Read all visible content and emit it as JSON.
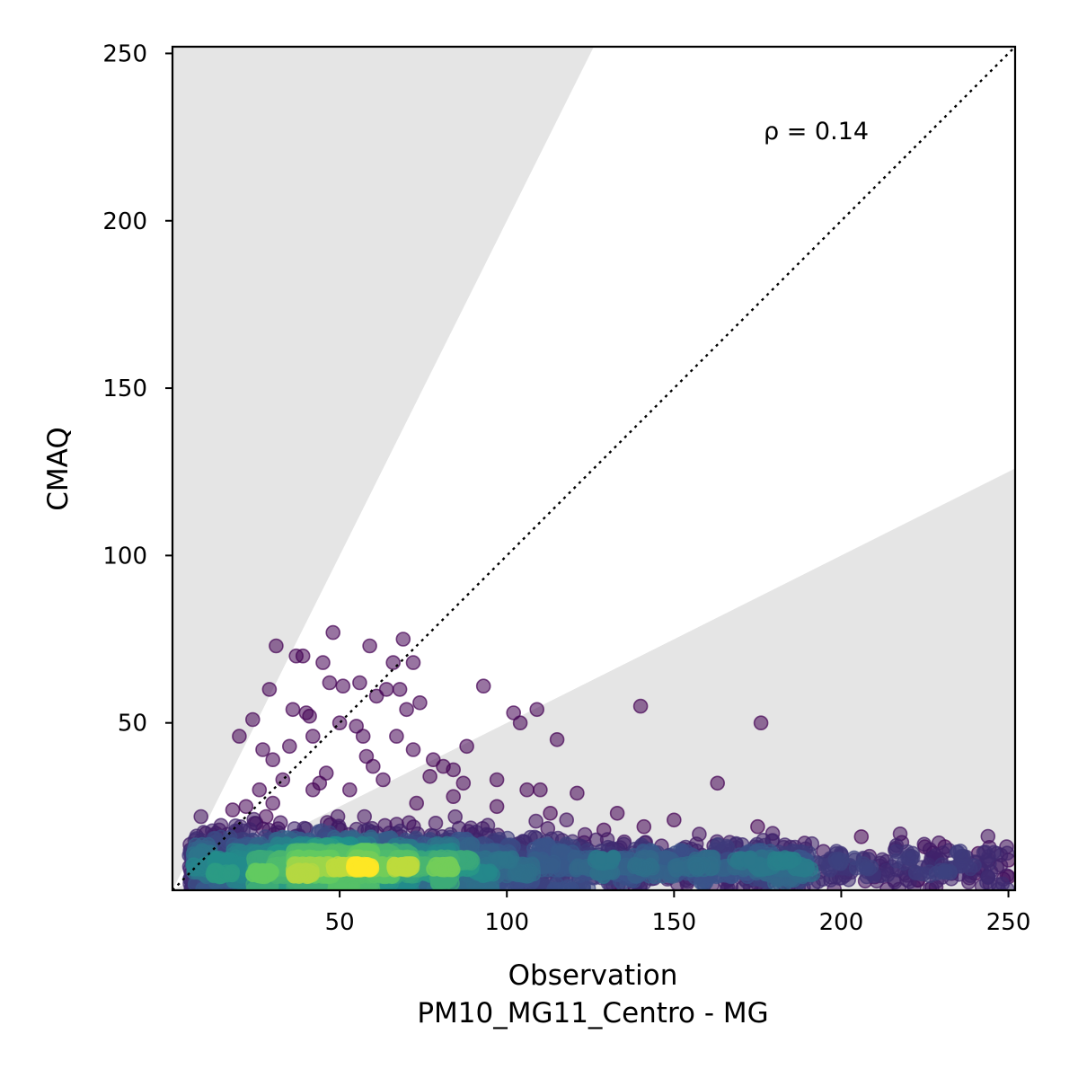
{
  "chart_data": {
    "type": "scatter",
    "xlabel": "Observation",
    "xlabel_line2": "PM10_MG11_Centro - MG",
    "ylabel": "CMAQ",
    "xlim": [
      0,
      252
    ],
    "ylim": [
      0,
      252
    ],
    "xticks": [
      50,
      100,
      150,
      200,
      250
    ],
    "yticks": [
      50,
      100,
      150,
      200,
      250
    ],
    "annotation": "ρ = 0.14",
    "reference_line": "1:1 dotted",
    "shaded_regions": "outside factor-of-2 band (y > 2x and y < x/2)",
    "colormap": "viridis (point density)",
    "colors": {
      "low_density": "#440154",
      "mid_density": "#21918c",
      "high_density": "#fde725",
      "shade": "#e5e5e5"
    },
    "outliers": [
      [
        31,
        73
      ],
      [
        37,
        70
      ],
      [
        39,
        70
      ],
      [
        48,
        77
      ],
      [
        59,
        73
      ],
      [
        66,
        68
      ],
      [
        69,
        75
      ],
      [
        72,
        68
      ],
      [
        45,
        68
      ],
      [
        47,
        62
      ],
      [
        51,
        61
      ],
      [
        56,
        62
      ],
      [
        61,
        58
      ],
      [
        64,
        60
      ],
      [
        68,
        60
      ],
      [
        74,
        56
      ],
      [
        70,
        54
      ],
      [
        40,
        53
      ],
      [
        41,
        52
      ],
      [
        36,
        54
      ],
      [
        29,
        60
      ],
      [
        24,
        51
      ],
      [
        20,
        46
      ],
      [
        27,
        42
      ],
      [
        35,
        43
      ],
      [
        42,
        46
      ],
      [
        50,
        50
      ],
      [
        55,
        49
      ],
      [
        57,
        46
      ],
      [
        67,
        46
      ],
      [
        72,
        42
      ],
      [
        78,
        39
      ],
      [
        81,
        37
      ],
      [
        84,
        36
      ],
      [
        88,
        43
      ],
      [
        93,
        61
      ],
      [
        102,
        53
      ],
      [
        104,
        50
      ],
      [
        109,
        54
      ],
      [
        115,
        45
      ],
      [
        140,
        55
      ],
      [
        176,
        50
      ],
      [
        163,
        32
      ],
      [
        121,
        29
      ],
      [
        113,
        23
      ],
      [
        110,
        30
      ],
      [
        106,
        30
      ],
      [
        97,
        33
      ],
      [
        87,
        32
      ],
      [
        84,
        28
      ],
      [
        77,
        34
      ],
      [
        73,
        26
      ],
      [
        63,
        33
      ],
      [
        60,
        37
      ],
      [
        58,
        40
      ],
      [
        53,
        30
      ],
      [
        46,
        35
      ],
      [
        44,
        32
      ],
      [
        42,
        30
      ],
      [
        33,
        33
      ],
      [
        30,
        39
      ],
      [
        26,
        30
      ],
      [
        30,
        26
      ],
      [
        22,
        25
      ],
      [
        28,
        22
      ],
      [
        18,
        24
      ],
      [
        10,
        17
      ],
      [
        13,
        17
      ],
      [
        25,
        20
      ],
      [
        133,
        23
      ],
      [
        129,
        18
      ],
      [
        141,
        19
      ],
      [
        150,
        21
      ],
      [
        175,
        19
      ],
      [
        206,
        16
      ],
      [
        225,
        13
      ],
      [
        231,
        13
      ],
      [
        236,
        10
      ],
      [
        241,
        11
      ],
      [
        244,
        9
      ],
      [
        250,
        9
      ],
      [
        228,
        8
      ],
      [
        233,
        5
      ],
      [
        240,
        5
      ],
      [
        250,
        4
      ],
      [
        223,
        3
      ],
      [
        210,
        4
      ],
      [
        97,
        25
      ]
    ]
  }
}
